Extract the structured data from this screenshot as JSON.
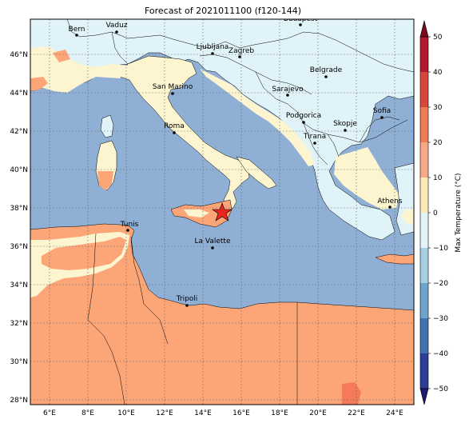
{
  "title": "Forecast of 2021011100 (f120-144)",
  "colorbar": {
    "label": "Max Temperature (°C)",
    "ticks": [
      "50",
      "40",
      "30",
      "20",
      "10",
      "0",
      "−10",
      "−20",
      "−30",
      "−40",
      "−50"
    ],
    "colors": [
      "#b2182b",
      "#d6463a",
      "#ef7b54",
      "#f7a985",
      "#fde9b6",
      "#e3f4f8",
      "#a6cfe3",
      "#6ea4cc",
      "#4371b2",
      "#2b3d97"
    ]
  },
  "axes": {
    "x_ticks": [
      "6°E",
      "8°E",
      "10°E",
      "12°E",
      "14°E",
      "16°E",
      "18°E",
      "20°E",
      "22°E",
      "24°E"
    ],
    "y_ticks": [
      "46°N",
      "44°N",
      "42°N",
      "40°N",
      "38°N",
      "36°N",
      "34°N",
      "32°N",
      "30°N",
      "28°N"
    ]
  },
  "cities": [
    {
      "name": "Bern"
    },
    {
      "name": "Vaduz"
    },
    {
      "name": "Budapest"
    },
    {
      "name": "Ljubljana"
    },
    {
      "name": "Zagreb"
    },
    {
      "name": "Belgrade"
    },
    {
      "name": "San Marino"
    },
    {
      "name": "Sarajevo"
    },
    {
      "name": "Sofia"
    },
    {
      "name": "Podgorica"
    },
    {
      "name": "Skopje"
    },
    {
      "name": "Roma"
    },
    {
      "name": "Tirana"
    },
    {
      "name": "Athens"
    },
    {
      "name": "Tunis"
    },
    {
      "name": "La Valette"
    },
    {
      "name": "Tripoli"
    }
  ],
  "map_colors": {
    "sea": "#8fb0d4",
    "cold_land": "#e0f3f9",
    "mild_land": "#fdf5d0",
    "warm_land": "#fca577",
    "hot": "#f47a59"
  }
}
